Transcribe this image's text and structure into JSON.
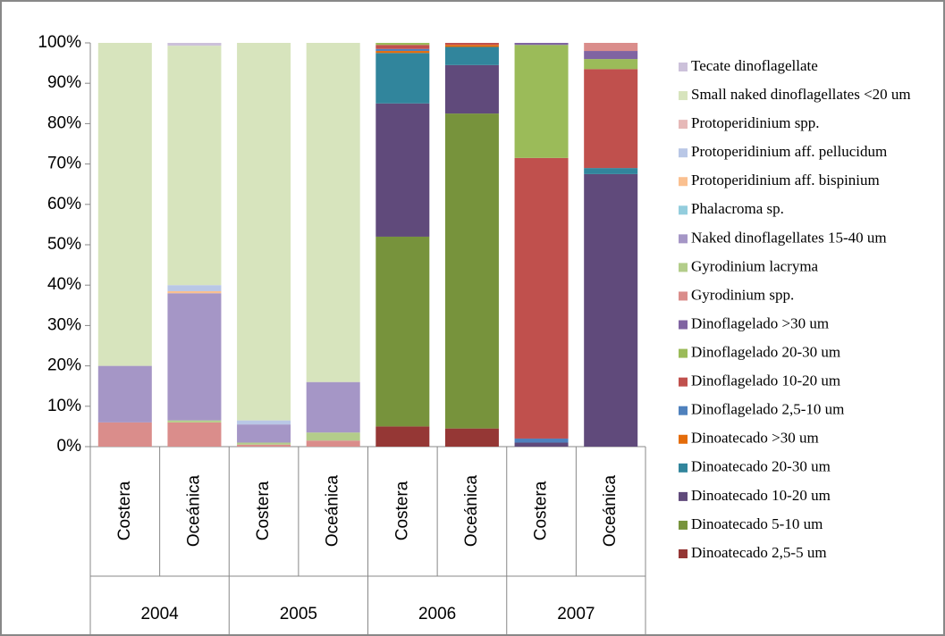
{
  "chart_data": {
    "type": "stacked_bar",
    "categories": [
      "Costera",
      "Oceánica",
      "Costera",
      "Oceánica",
      "Costera",
      "Oceánica",
      "Costera",
      "Oceánica"
    ],
    "groups": [
      "2004",
      "2005",
      "2006",
      "2007"
    ],
    "ylim": [
      0,
      100
    ],
    "yticks": [
      {
        "value": 0,
        "label": "0%"
      },
      {
        "value": 10,
        "label": "10%"
      },
      {
        "value": 20,
        "label": "20%"
      },
      {
        "value": 30,
        "label": "30%"
      },
      {
        "value": 40,
        "label": "40%"
      },
      {
        "value": 50,
        "label": "50%"
      },
      {
        "value": 60,
        "label": "60%"
      },
      {
        "value": 70,
        "label": "70%"
      },
      {
        "value": 80,
        "label": "80%"
      },
      {
        "value": 90,
        "label": "90%"
      },
      {
        "value": 100,
        "label": "100%"
      }
    ],
    "legend": "right",
    "series": [
      {
        "name": "Dinoatecado 2,5-5 um",
        "color": "#953735",
        "values": [
          0,
          0,
          0,
          0,
          5,
          4.5,
          0,
          0
        ]
      },
      {
        "name": "Dinoatecado 5-10 um",
        "color": "#77933c",
        "values": [
          0,
          0,
          0,
          0,
          47,
          78,
          0,
          0
        ]
      },
      {
        "name": "Dinoatecado 10-20 um",
        "color": "#604a7b",
        "values": [
          0,
          0,
          0,
          0,
          33,
          12,
          1,
          67.5
        ]
      },
      {
        "name": "Dinoatecado 20-30 um",
        "color": "#31859c",
        "values": [
          0,
          0,
          0,
          0,
          12.5,
          4.5,
          0,
          1.5
        ]
      },
      {
        "name": "Dinoatecado >30 um",
        "color": "#e46c0a",
        "values": [
          0,
          0,
          0,
          0,
          0.5,
          0.5,
          0,
          0
        ]
      },
      {
        "name": "Dinoflagelado 2,5-10 um",
        "color": "#4f81bd",
        "values": [
          0,
          0,
          0,
          0,
          0.5,
          0,
          1,
          0
        ]
      },
      {
        "name": "Dinoflagelado 10-20 um",
        "color": "#c0504d",
        "values": [
          0,
          0,
          0,
          0,
          1,
          0.5,
          69.5,
          24.5
        ]
      },
      {
        "name": "Dinoflagelado 20-30 um",
        "color": "#9bbb59",
        "values": [
          0,
          0,
          0,
          0,
          0.5,
          0,
          28,
          2.5
        ]
      },
      {
        "name": "Dinoflagelado >30 um",
        "color": "#8064a2",
        "values": [
          0,
          0,
          0,
          0,
          0,
          0,
          0.5,
          2
        ]
      },
      {
        "name": "Gyrodinium spp.",
        "color": "#da8d8b",
        "values": [
          6,
          6,
          0.5,
          1.5,
          0,
          0,
          0,
          2
        ]
      },
      {
        "name": "Gyrodinium lacryma",
        "color": "#b3cd8a",
        "values": [
          0,
          0.5,
          0.5,
          2,
          0,
          0,
          0,
          0
        ]
      },
      {
        "name": "Naked dinoflagellates 15-40 um",
        "color": "#a596c6",
        "values": [
          14,
          31.5,
          4.5,
          12.5,
          0,
          0,
          0,
          0
        ]
      },
      {
        "name": "Phalacroma sp.",
        "color": "#93cddd",
        "values": [
          0,
          0,
          0,
          0,
          0,
          0,
          0,
          0
        ]
      },
      {
        "name": "Protoperidinium aff. bispinium",
        "color": "#fac090",
        "values": [
          0,
          0.5,
          0,
          0,
          0,
          0,
          0,
          0
        ]
      },
      {
        "name": "Protoperidinium aff. pellucidum",
        "color": "#b9c7e6",
        "values": [
          0,
          1.5,
          1,
          0,
          0,
          0,
          0,
          0
        ]
      },
      {
        "name": "Protoperidinium spp.",
        "color": "#e6b9b8",
        "values": [
          0,
          0,
          0,
          0,
          0,
          0,
          0,
          0
        ]
      },
      {
        "name": "Small naked dinoflagellates <20 um",
        "color": "#d7e4bd",
        "values": [
          80,
          59.3,
          93.5,
          84,
          0,
          0,
          0,
          0
        ]
      },
      {
        "name": "Tecate dinoflagellate",
        "color": "#ccc1da",
        "values": [
          0,
          0.7,
          0,
          0,
          0,
          0,
          0,
          0
        ]
      }
    ]
  }
}
